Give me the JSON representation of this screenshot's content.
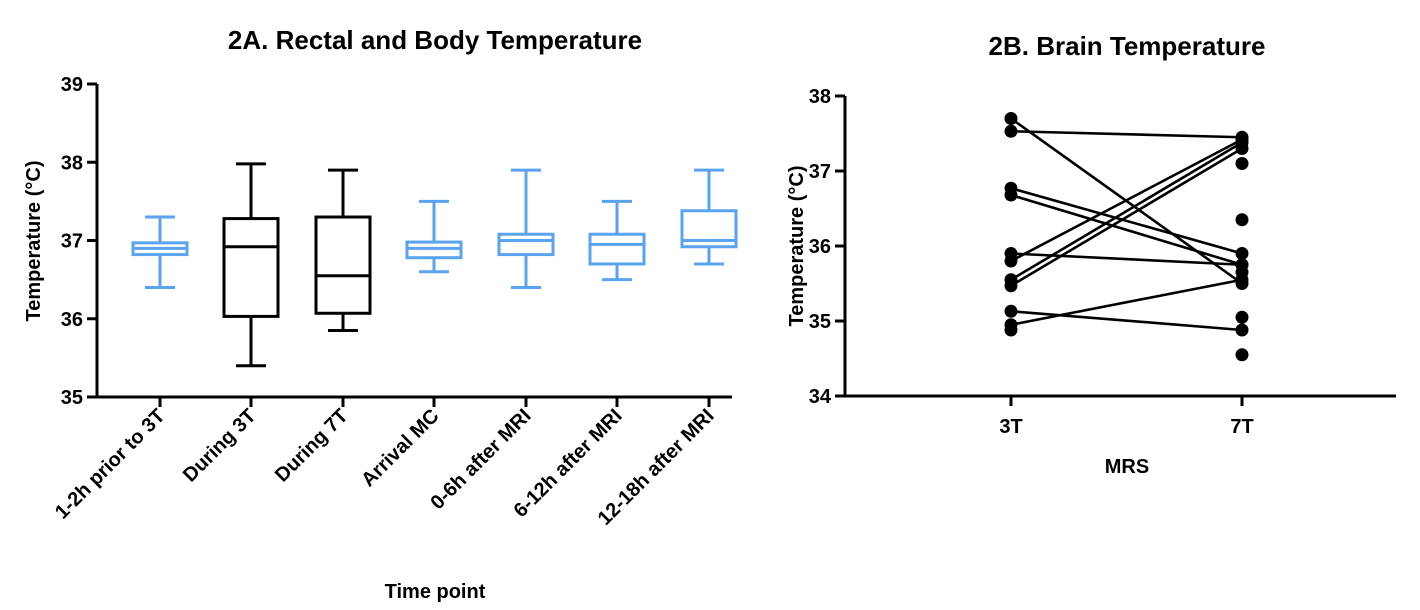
{
  "chart_data": [
    {
      "type": "box",
      "title": "2A. Rectal and Body Temperature",
      "xlabel": "Time point",
      "ylabel": "Temperature (°C)",
      "ylim": [
        35,
        39
      ],
      "yticks": [
        35,
        36,
        37,
        38,
        39
      ],
      "colors": {
        "blue": "#5aa3f0",
        "black": "#000000"
      },
      "categories": [
        "1-2h prior to 3T",
        "During 3T",
        "During 7T",
        "Arrival MC",
        "0-6h after MRI",
        "6-12h after MRI",
        "12-18h after MRI"
      ],
      "boxes": [
        {
          "min": 36.4,
          "q1": 36.82,
          "median": 36.9,
          "q3": 36.97,
          "max": 37.3,
          "color": "blue"
        },
        {
          "min": 35.4,
          "q1": 36.03,
          "median": 36.92,
          "q3": 37.28,
          "max": 37.98,
          "color": "black"
        },
        {
          "min": 35.85,
          "q1": 36.07,
          "median": 36.55,
          "q3": 37.3,
          "max": 37.9,
          "color": "black"
        },
        {
          "min": 36.6,
          "q1": 36.78,
          "median": 36.9,
          "q3": 36.98,
          "max": 37.5,
          "color": "blue"
        },
        {
          "min": 36.4,
          "q1": 36.82,
          "median": 37.0,
          "q3": 37.08,
          "max": 37.9,
          "color": "blue"
        },
        {
          "min": 36.5,
          "q1": 36.7,
          "median": 36.95,
          "q3": 37.08,
          "max": 37.5,
          "color": "blue"
        },
        {
          "min": 36.7,
          "q1": 36.92,
          "median": 37.0,
          "q3": 37.38,
          "max": 37.9,
          "color": "blue"
        }
      ]
    },
    {
      "type": "paired-scatter",
      "title": "2B. Brain Temperature",
      "xlabel": "MRS",
      "ylabel": "Temperature (°C)",
      "ylim": [
        34,
        38
      ],
      "yticks": [
        34,
        35,
        36,
        37,
        38
      ],
      "categories": [
        "3T",
        "7T"
      ],
      "pairs": [
        [
          37.7,
          35.5
        ],
        [
          37.53,
          37.45
        ],
        [
          36.77,
          35.9
        ],
        [
          36.68,
          35.75
        ],
        [
          35.9,
          35.75
        ],
        [
          35.8,
          37.42
        ],
        [
          35.55,
          37.38
        ],
        [
          35.47,
          37.3
        ],
        [
          35.13,
          34.88
        ],
        [
          34.95,
          35.55
        ]
      ],
      "unpaired_points_3T": [
        34.88
      ],
      "unpaired_points_7T": [
        37.1,
        36.35,
        35.65,
        35.05,
        34.55
      ]
    }
  ]
}
